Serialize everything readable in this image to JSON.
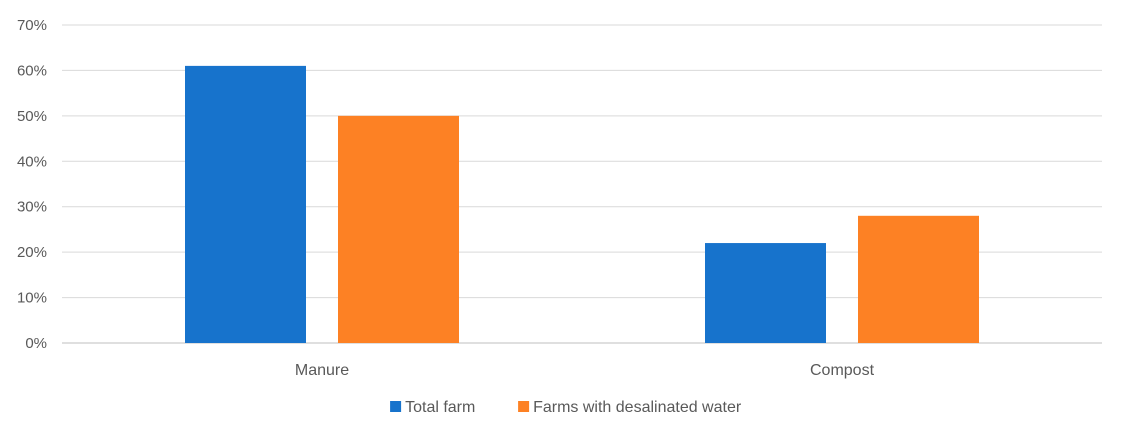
{
  "chart_data": {
    "type": "bar",
    "title": "",
    "xlabel": "",
    "ylabel": "",
    "categories": [
      "Manure",
      "Compost"
    ],
    "series": [
      {
        "name": "Total farm",
        "values": [
          61,
          22
        ],
        "color": "#1773cc"
      },
      {
        "name": "Farms with desalinated water",
        "values": [
          50,
          28
        ],
        "color": "#fd8124"
      }
    ],
    "ylim": [
      0,
      70
    ],
    "yticks": [
      0,
      10,
      20,
      30,
      40,
      50,
      60,
      70
    ],
    "ytick_labels": [
      "0%",
      "10%",
      "20%",
      "30%",
      "40%",
      "50%",
      "60%",
      "70%"
    ],
    "grid": true,
    "legend_position": "bottom"
  }
}
